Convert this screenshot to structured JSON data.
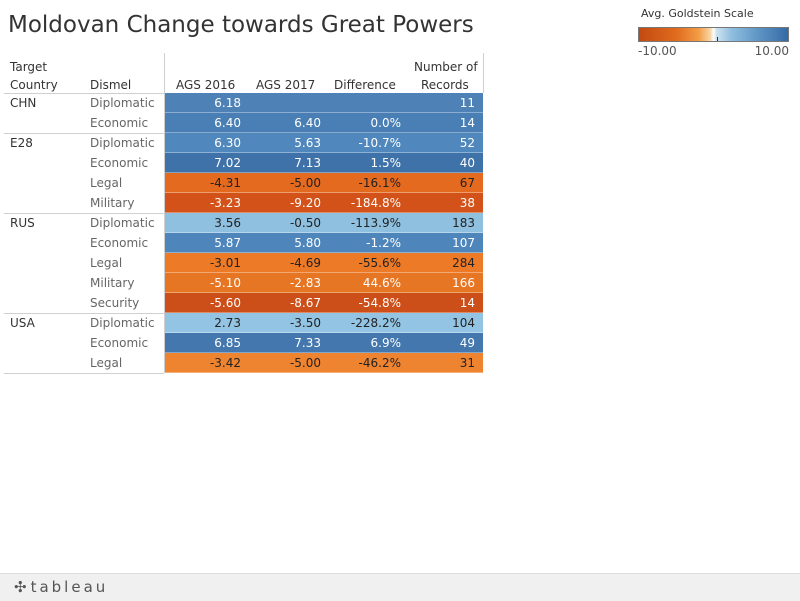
{
  "title": "Moldovan Change towards Great Powers",
  "legend": {
    "title": "Avg. Goldstein Scale",
    "min_label": "-10.00",
    "max_label": "10.00",
    "negative_color": "#c24a12",
    "positive_color": "#356ba5"
  },
  "headers": {
    "target_line1": "Target",
    "target_line2": "Country",
    "dismel": "Dismel",
    "ags2016": "AGS 2016",
    "ags2017": "AGS 2017",
    "difference": "Difference",
    "records_line1": "Number of",
    "records_line2": "Records"
  },
  "chart_data": {
    "type": "table",
    "columns": [
      "Target Country",
      "Dismel",
      "AGS 2016",
      "AGS 2017",
      "Difference",
      "Number of Records"
    ],
    "rows": [
      {
        "country": "CHN",
        "dismel": "Diplomatic",
        "ags2016": "6.18",
        "ags2017": "",
        "difference": "",
        "records": "11",
        "bg": "#4e82b7",
        "fg": "#ffffff"
      },
      {
        "country": "",
        "dismel": "Economic",
        "ags2016": "6.40",
        "ags2017": "6.40",
        "difference": "0.0%",
        "records": "14",
        "bg": "#4a7fb5",
        "fg": "#ffffff"
      },
      {
        "country": "E28",
        "dismel": "Diplomatic",
        "ags2016": "6.30",
        "ags2017": "5.63",
        "difference": "-10.7%",
        "records": "52",
        "bg": "#5088bd",
        "fg": "#ffffff"
      },
      {
        "country": "",
        "dismel": "Economic",
        "ags2016": "7.02",
        "ags2017": "7.13",
        "difference": "1.5%",
        "records": "40",
        "bg": "#3f72a8",
        "fg": "#ffffff"
      },
      {
        "country": "",
        "dismel": "Legal",
        "ags2016": "-4.31",
        "ags2017": "-5.00",
        "difference": "-16.1%",
        "records": "67",
        "bg": "#e36a1e",
        "fg": "#222222"
      },
      {
        "country": "",
        "dismel": "Military",
        "ags2016": "-3.23",
        "ags2017": "-9.20",
        "difference": "-184.8%",
        "records": "38",
        "bg": "#d2521a",
        "fg": "#ffffff"
      },
      {
        "country": "RUS",
        "dismel": "Diplomatic",
        "ags2016": "3.56",
        "ags2017": "-0.50",
        "difference": "-113.9%",
        "records": "183",
        "bg": "#8fc0e0",
        "fg": "#222222"
      },
      {
        "country": "",
        "dismel": "Economic",
        "ags2016": "5.87",
        "ags2017": "5.80",
        "difference": "-1.2%",
        "records": "107",
        "bg": "#4e86bb",
        "fg": "#ffffff"
      },
      {
        "country": "",
        "dismel": "Legal",
        "ags2016": "-3.01",
        "ags2017": "-4.69",
        "difference": "-55.6%",
        "records": "284",
        "bg": "#ec7a26",
        "fg": "#222222"
      },
      {
        "country": "",
        "dismel": "Military",
        "ags2016": "-5.10",
        "ags2017": "-2.83",
        "difference": "44.6%",
        "records": "166",
        "bg": "#e67524",
        "fg": "#ffffff"
      },
      {
        "country": "",
        "dismel": "Security",
        "ags2016": "-5.60",
        "ags2017": "-8.67",
        "difference": "-54.8%",
        "records": "14",
        "bg": "#cc4e18",
        "fg": "#ffffff"
      },
      {
        "country": "USA",
        "dismel": "Diplomatic",
        "ags2016": "2.73",
        "ags2017": "-3.50",
        "difference": "-228.2%",
        "records": "104",
        "bg": "#93c4e3",
        "fg": "#222222"
      },
      {
        "country": "",
        "dismel": "Economic",
        "ags2016": "6.85",
        "ags2017": "7.33",
        "difference": "6.9%",
        "records": "49",
        "bg": "#4377ad",
        "fg": "#ffffff"
      },
      {
        "country": "",
        "dismel": "Legal",
        "ags2016": "-3.42",
        "ags2017": "-5.00",
        "difference": "-46.2%",
        "records": "31",
        "bg": "#ef8430",
        "fg": "#222222"
      }
    ]
  },
  "footer": {
    "logo": "tableau",
    "logo_icon": "tableau-plus-icon"
  }
}
